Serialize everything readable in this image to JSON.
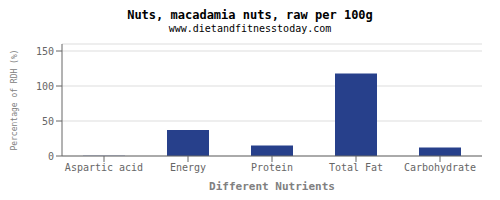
{
  "chart_data": {
    "type": "bar",
    "title": "Nuts, macadamia nuts, raw per 100g",
    "subtitle": "www.dietandfitnesstoday.com",
    "xlabel": "Different Nutrients",
    "ylabel": "Percentage of RDH (%)",
    "categories": [
      "Aspartic acid",
      "Energy",
      "Protein",
      "Total Fat",
      "Carbohydrate"
    ],
    "values": [
      0.5,
      37,
      15,
      118,
      12
    ],
    "color": "#27408B",
    "ylim": [
      0,
      160
    ],
    "yticks": [
      0,
      50,
      100,
      150
    ],
    "grid": true
  }
}
